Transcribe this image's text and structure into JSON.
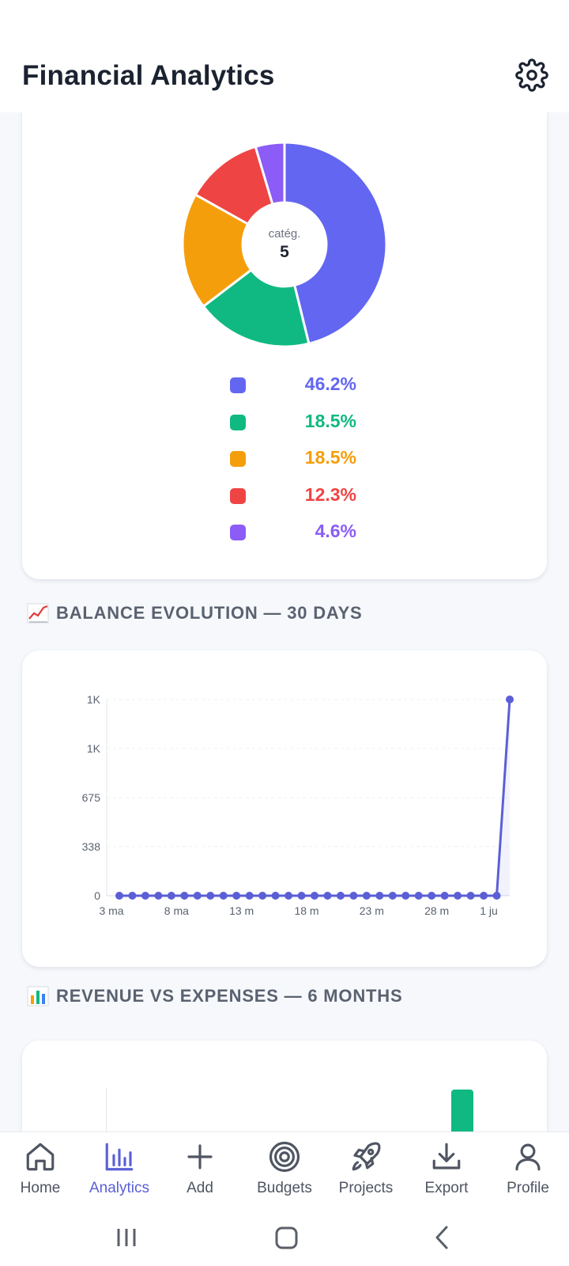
{
  "header": {
    "title": "Financial Analytics",
    "settings_icon": "gear-icon"
  },
  "donut": {
    "center_label": "catég.",
    "center_value": "5",
    "chart_data": {
      "type": "pie",
      "values": [
        46.2,
        18.5,
        18.5,
        12.3,
        4.6
      ],
      "colors": [
        "#6366f1",
        "#10b981",
        "#f59e0b",
        "#ef4444",
        "#8b5cf6"
      ]
    },
    "legend": [
      {
        "value": "46.2%",
        "color": "#6366f1"
      },
      {
        "value": "18.5%",
        "color": "#10b981"
      },
      {
        "value": "18.5%",
        "color": "#f59e0b"
      },
      {
        "value": "12.3%",
        "color": "#ef4444"
      },
      {
        "value": "4.6%",
        "color": "#8b5cf6"
      }
    ]
  },
  "balance": {
    "section_title": "BALANCE EVOLUTION — 30 DAYS",
    "section_icon": "chart-increasing-icon",
    "chart_data": {
      "type": "line",
      "yticks": [
        "1K",
        "1K",
        "675",
        "338",
        "0"
      ],
      "ytick_values": [
        1350,
        1013,
        675,
        338,
        0
      ],
      "xticks": [
        "3 ma",
        "8 ma",
        "13 m",
        "18 m",
        "23 m",
        "28 m",
        "1 ju"
      ],
      "xtick_index": [
        0,
        5,
        10,
        15,
        20,
        25,
        29
      ],
      "ylim": [
        0,
        1350
      ],
      "values": [
        0,
        0,
        0,
        0,
        0,
        0,
        0,
        0,
        0,
        0,
        0,
        0,
        0,
        0,
        0,
        0,
        0,
        0,
        0,
        0,
        0,
        0,
        0,
        0,
        0,
        0,
        0,
        0,
        0,
        0,
        1350
      ],
      "color": "#5b5fd6"
    }
  },
  "revenue": {
    "section_title": "REVENUE VS EXPENSES — 6 MONTHS",
    "section_icon": "bar-chart-icon",
    "bar_color": "#10b981"
  },
  "nav": {
    "items": [
      {
        "label": "Home",
        "icon": "home-icon"
      },
      {
        "label": "Analytics",
        "icon": "analytics-icon",
        "active": true
      },
      {
        "label": "Add",
        "icon": "plus-icon"
      },
      {
        "label": "Budgets",
        "icon": "target-icon"
      },
      {
        "label": "Projects",
        "icon": "rocket-icon"
      },
      {
        "label": "Export",
        "icon": "download-icon"
      },
      {
        "label": "Profile",
        "icon": "user-icon"
      }
    ],
    "active_color": "#5b5fd6"
  },
  "system_nav": [
    "recents-button",
    "home-button",
    "back-button"
  ]
}
